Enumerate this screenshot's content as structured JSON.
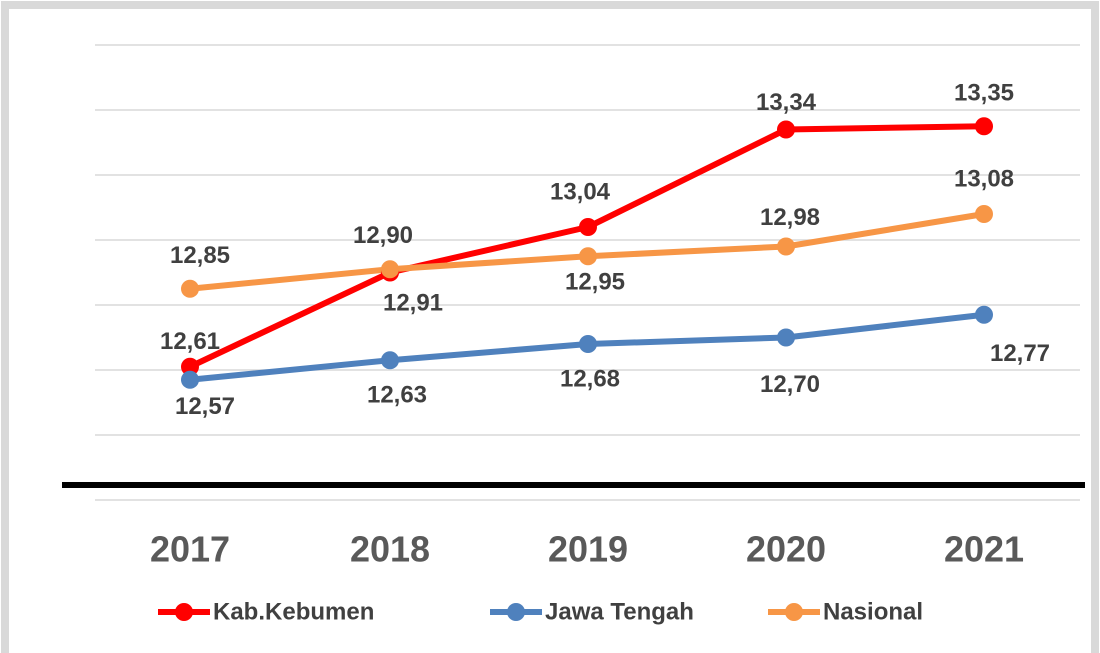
{
  "chart_data": {
    "type": "line",
    "categories": [
      "2017",
      "2018",
      "2019",
      "2020",
      "2021"
    ],
    "series": [
      {
        "name": "Kab.Kebumen",
        "color": "#ff0000",
        "values": [
          12.61,
          12.9,
          13.04,
          13.34,
          13.35
        ],
        "value_labels": [
          "12,61",
          "12,90",
          "13,04",
          "13,34",
          "13,35"
        ]
      },
      {
        "name": "Jawa Tengah",
        "color": "#4f81bd",
        "values": [
          12.57,
          12.63,
          12.68,
          12.7,
          12.77
        ],
        "value_labels": [
          "12,57",
          "12,63",
          "12,68",
          "12,70",
          "12,77"
        ]
      },
      {
        "name": "Nasional",
        "color": "#f79646",
        "values": [
          12.85,
          12.91,
          12.95,
          12.98,
          13.08
        ],
        "value_labels": [
          "12,85",
          "12,91",
          "12,95",
          "12,98",
          "13,08"
        ]
      }
    ],
    "ylim": [
      12.2,
      13.6
    ],
    "yticks": [
      12.2,
      12.4,
      12.6,
      12.8,
      13.0,
      13.2,
      13.4,
      13.6
    ],
    "grid": true
  }
}
